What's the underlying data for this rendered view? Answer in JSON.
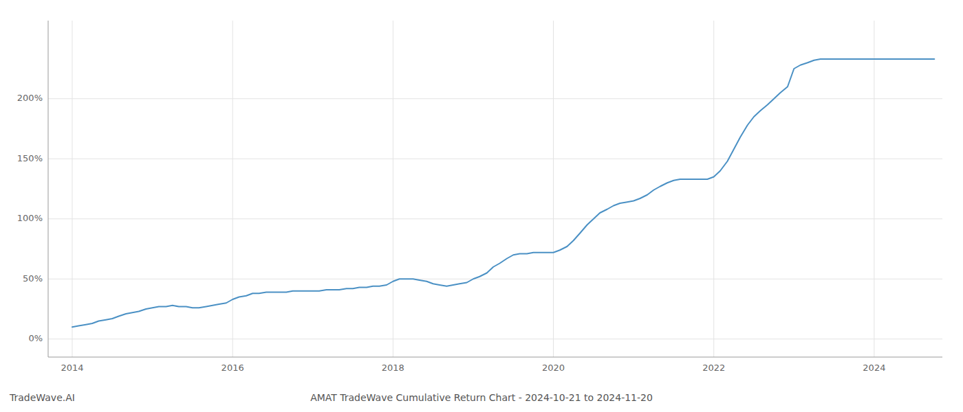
{
  "chart_data": {
    "type": "line",
    "title": "AMAT TradeWave Cumulative Return Chart - 2024-10-21 to 2024-11-20",
    "annotations": [
      "TradeWave.AI"
    ],
    "color": "#4a90c4",
    "grid": true,
    "x": [
      2014.0,
      2014.08,
      2014.17,
      2014.25,
      2014.33,
      2014.42,
      2014.5,
      2014.58,
      2014.67,
      2014.75,
      2014.83,
      2014.92,
      2015.0,
      2015.08,
      2015.17,
      2015.25,
      2015.33,
      2015.42,
      2015.5,
      2015.58,
      2015.67,
      2015.75,
      2015.83,
      2015.92,
      2016.0,
      2016.08,
      2016.17,
      2016.25,
      2016.33,
      2016.42,
      2016.5,
      2016.58,
      2016.67,
      2016.75,
      2016.83,
      2016.92,
      2017.0,
      2017.08,
      2017.17,
      2017.25,
      2017.33,
      2017.42,
      2017.5,
      2017.58,
      2017.67,
      2017.75,
      2017.83,
      2017.92,
      2018.0,
      2018.08,
      2018.17,
      2018.25,
      2018.33,
      2018.42,
      2018.5,
      2018.58,
      2018.67,
      2018.75,
      2018.83,
      2018.92,
      2019.0,
      2019.08,
      2019.17,
      2019.25,
      2019.33,
      2019.42,
      2019.5,
      2019.58,
      2019.67,
      2019.75,
      2019.83,
      2019.92,
      2020.0,
      2020.08,
      2020.17,
      2020.25,
      2020.33,
      2020.42,
      2020.5,
      2020.58,
      2020.67,
      2020.75,
      2020.83,
      2020.92,
      2021.0,
      2021.08,
      2021.17,
      2021.25,
      2021.33,
      2021.42,
      2021.5,
      2021.58,
      2021.67,
      2021.75,
      2021.83,
      2021.92,
      2022.0,
      2022.08,
      2022.17,
      2022.25,
      2022.33,
      2022.42,
      2022.5,
      2022.58,
      2022.67,
      2022.75,
      2022.83,
      2022.92,
      2023.0,
      2023.08,
      2023.17,
      2023.25,
      2023.33,
      2023.42,
      2023.5,
      2023.58,
      2023.67,
      2023.75,
      2023.83,
      2023.92,
      2024.0,
      2024.08,
      2024.17,
      2024.25,
      2024.33,
      2024.42,
      2024.5,
      2024.58,
      2024.67,
      2024.75
    ],
    "values": [
      10,
      11,
      12,
      13,
      15,
      16,
      17,
      19,
      21,
      22,
      23,
      25,
      26,
      27,
      27,
      28,
      27,
      27,
      26,
      26,
      27,
      28,
      29,
      30,
      33,
      35,
      36,
      38,
      38,
      39,
      39,
      39,
      39,
      40,
      40,
      40,
      40,
      40,
      41,
      41,
      41,
      42,
      42,
      43,
      43,
      44,
      44,
      45,
      48,
      50,
      50,
      50,
      49,
      48,
      46,
      45,
      44,
      45,
      46,
      47,
      50,
      52,
      55,
      60,
      63,
      67,
      70,
      71,
      71,
      72,
      72,
      72,
      72,
      74,
      77,
      82,
      88,
      95,
      100,
      105,
      108,
      111,
      113,
      114,
      115,
      117,
      120,
      124,
      127,
      130,
      132,
      133,
      133,
      133,
      133,
      133,
      135,
      140,
      148,
      158,
      168,
      178,
      185,
      190,
      195,
      200,
      205,
      210,
      225,
      228,
      230,
      232,
      233,
      233,
      233,
      233,
      233,
      233,
      233,
      233,
      233,
      233,
      233,
      233,
      233,
      233,
      233,
      233,
      233,
      233
    ],
    "xlim": [
      2013.7,
      2024.85
    ],
    "ylim": [
      -15,
      265
    ],
    "xticks": [
      2014,
      2016,
      2018,
      2020,
      2022,
      2024
    ],
    "yticks": [
      {
        "value": 0,
        "label": "0%"
      },
      {
        "value": 50,
        "label": "50%"
      },
      {
        "value": 100,
        "label": "100%"
      },
      {
        "value": 150,
        "label": "150%"
      },
      {
        "value": 200,
        "label": "200%"
      }
    ]
  }
}
